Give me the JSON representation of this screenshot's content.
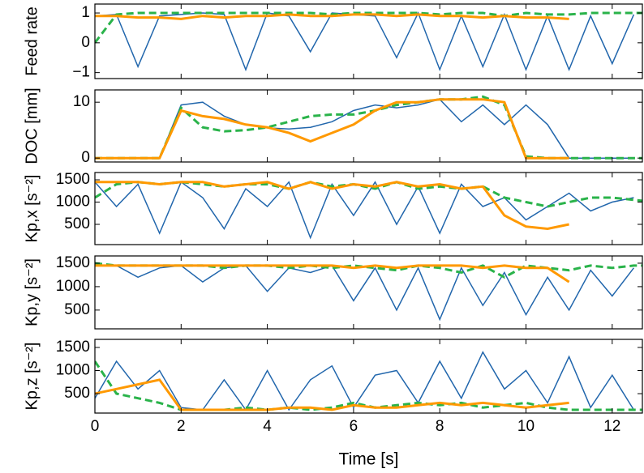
{
  "chart_data": [
    {
      "type": "line",
      "ylabel": "Feed rate",
      "x": [
        0,
        0.5,
        1,
        1.5,
        2,
        2.5,
        3,
        3.5,
        4,
        4.5,
        5,
        5.5,
        6,
        6.5,
        7,
        7.5,
        8,
        8.5,
        9,
        9.5,
        10,
        10.5,
        11,
        11.5,
        12,
        12.5,
        13
      ],
      "xlim": [
        0,
        12.7
      ],
      "xticks": [
        0,
        2,
        4,
        6,
        8,
        10,
        12
      ],
      "ylim": [
        -1.2,
        1.3
      ],
      "yticks": [
        {
          "value": -1,
          "label": "−1"
        },
        0,
        1
      ],
      "series": [
        {
          "color": "#2166ac",
          "dash": false,
          "values": [
            0.9,
            0.95,
            -0.8,
            0.9,
            0.95,
            1,
            0.95,
            -0.9,
            1,
            0.9,
            -0.3,
            1,
            0.95,
            0.9,
            -0.5,
            1,
            -0.9,
            0.9,
            -0.8,
            0.95,
            -0.9,
            0.9,
            -0.9,
            0.9,
            -0.7,
            0.95,
            null
          ]
        },
        {
          "color": "#2ab34a",
          "dash": true,
          "values": [
            0,
            0.95,
            1,
            1,
            1,
            1,
            1,
            1,
            1,
            1,
            1,
            0.95,
            1,
            1,
            1,
            1,
            0.95,
            1,
            1,
            0.9,
            1,
            0.95,
            0.95,
            1,
            1,
            1,
            1
          ]
        },
        {
          "color": "#ff9900",
          "dash": false,
          "values": [
            0.9,
            0.9,
            0.85,
            0.85,
            0.8,
            0.9,
            0.85,
            0.9,
            0.9,
            0.95,
            0.9,
            0.9,
            0.95,
            0.95,
            0.9,
            0.95,
            0.9,
            0.9,
            0.85,
            0.9,
            0.85,
            0.85,
            0.8,
            null,
            null,
            null,
            null
          ]
        }
      ]
    },
    {
      "type": "line",
      "ylabel": "DOC [mm]",
      "x": [
        0,
        0.5,
        1,
        1.5,
        2,
        2.5,
        3,
        3.5,
        4,
        4.5,
        5,
        5.5,
        6,
        6.5,
        7,
        7.5,
        8,
        8.5,
        9,
        9.5,
        10,
        10.5,
        11,
        11.5,
        12,
        12.5,
        13
      ],
      "xlim": [
        0,
        12.7
      ],
      "xticks": [
        0,
        2,
        4,
        6,
        8,
        10,
        12
      ],
      "ylim": [
        -0.7,
        12.2
      ],
      "yticks": [
        0,
        10
      ],
      "series": [
        {
          "color": "#2166ac",
          "dash": false,
          "values": [
            0,
            0,
            0,
            0,
            9.5,
            10,
            7.5,
            6,
            5.4,
            5.2,
            5.5,
            6.5,
            8.5,
            9.5,
            9,
            9.5,
            10.5,
            6.5,
            9.5,
            6,
            9.5,
            6,
            0,
            0,
            0,
            0,
            null
          ]
        },
        {
          "color": "#2ab34a",
          "dash": true,
          "values": [
            0,
            0,
            0,
            0,
            9,
            5.5,
            4.8,
            5,
            5.5,
            6.5,
            7.5,
            7.8,
            7.8,
            8.5,
            9.5,
            10,
            10.5,
            10.5,
            11,
            9.5,
            0.3,
            0,
            0,
            0,
            0,
            0,
            0
          ]
        },
        {
          "color": "#ff9900",
          "dash": false,
          "values": [
            0,
            0,
            0,
            0,
            8.5,
            7.5,
            7,
            6,
            5.5,
            4.5,
            3,
            4.5,
            6,
            8.5,
            10,
            10,
            10.5,
            10.5,
            10.5,
            10,
            0,
            0,
            0,
            null,
            null,
            null,
            null
          ]
        }
      ]
    },
    {
      "type": "line",
      "ylabel": "Kp,x [s⁻²]",
      "x": [
        0,
        0.5,
        1,
        1.5,
        2,
        2.5,
        3,
        3.5,
        4,
        4.5,
        5,
        5.5,
        6,
        6.5,
        7,
        7.5,
        8,
        8.5,
        9,
        9.5,
        10,
        10.5,
        11,
        11.5,
        12,
        12.5,
        13
      ],
      "xlim": [
        0,
        12.7
      ],
      "xticks": [
        0,
        2,
        4,
        6,
        8,
        10,
        12
      ],
      "ylim": [
        45,
        1664
      ],
      "yticks": [
        500,
        1000,
        1500
      ],
      "series": [
        {
          "color": "#2166ac",
          "dash": false,
          "values": [
            1450,
            900,
            1400,
            300,
            1450,
            1100,
            400,
            1300,
            900,
            1450,
            200,
            1400,
            700,
            1450,
            500,
            1350,
            300,
            1400,
            900,
            1100,
            600,
            900,
            1200,
            800,
            1000,
            1100,
            null
          ]
        },
        {
          "color": "#2ab34a",
          "dash": true,
          "values": [
            1100,
            1400,
            1450,
            1400,
            1450,
            1400,
            1350,
            1400,
            1400,
            1300,
            1450,
            1350,
            1400,
            1300,
            1450,
            1300,
            1350,
            1300,
            1350,
            1100,
            1000,
            900,
            1000,
            1100,
            1100,
            1050,
            1000
          ]
        },
        {
          "color": "#ff9900",
          "dash": false,
          "values": [
            1450,
            1450,
            1450,
            1400,
            1450,
            1450,
            1350,
            1400,
            1450,
            1300,
            1450,
            1300,
            1400,
            1350,
            1450,
            1350,
            1400,
            1300,
            1350,
            700,
            450,
            400,
            500,
            null,
            null,
            null,
            null
          ]
        }
      ]
    },
    {
      "type": "line",
      "ylabel": "Kp,y [s⁻²]",
      "x": [
        0,
        0.5,
        1,
        1.5,
        2,
        2.5,
        3,
        3.5,
        4,
        4.5,
        5,
        5.5,
        6,
        6.5,
        7,
        7.5,
        8,
        8.5,
        9,
        9.5,
        10,
        10.5,
        11,
        11.5,
        12,
        12.5,
        13
      ],
      "xlim": [
        0,
        12.7
      ],
      "xticks": [
        0,
        2,
        4,
        6,
        8,
        10,
        12
      ],
      "ylim": [
        100,
        1655
      ],
      "yticks": [
        500,
        1000,
        1500
      ],
      "series": [
        {
          "color": "#2166ac",
          "dash": false,
          "values": [
            1450,
            1450,
            1200,
            1400,
            1450,
            1100,
            1400,
            1450,
            900,
            1400,
            1300,
            1450,
            700,
            1400,
            500,
            1400,
            300,
            1400,
            600,
            1300,
            400,
            1200,
            500,
            1350,
            800,
            1400,
            null
          ]
        },
        {
          "color": "#2ab34a",
          "dash": true,
          "values": [
            1500,
            1450,
            1450,
            1450,
            1450,
            1450,
            1400,
            1450,
            1450,
            1400,
            1450,
            1400,
            1450,
            1400,
            1350,
            1450,
            1400,
            1300,
            1450,
            1200,
            1450,
            1400,
            1350,
            1450,
            1400,
            1450,
            1450
          ]
        },
        {
          "color": "#ff9900",
          "dash": false,
          "values": [
            1450,
            1450,
            1450,
            1450,
            1450,
            1450,
            1450,
            1450,
            1450,
            1450,
            1450,
            1450,
            1400,
            1450,
            1400,
            1450,
            1450,
            1450,
            1400,
            1450,
            1400,
            1400,
            1100,
            null,
            null,
            null,
            null
          ]
        }
      ]
    },
    {
      "type": "line",
      "ylabel": "Kp,z [s⁻²]",
      "xlabel": "Time [s]",
      "x": [
        0,
        0.5,
        1,
        1.5,
        2,
        2.5,
        3,
        3.5,
        4,
        4.5,
        5,
        5.5,
        6,
        6.5,
        7,
        7.5,
        8,
        8.5,
        9,
        9.5,
        10,
        10.5,
        11,
        11.5,
        12,
        12.5,
        13
      ],
      "xlim": [
        0,
        12.7
      ],
      "xticks": [
        0,
        2,
        4,
        6,
        8,
        10,
        12
      ],
      "ylim": [
        80,
        1675
      ],
      "yticks": [
        500,
        1000,
        1500
      ],
      "series": [
        {
          "color": "#2166ac",
          "dash": false,
          "values": [
            400,
            1200,
            600,
            1000,
            200,
            150,
            800,
            150,
            1000,
            150,
            800,
            1100,
            200,
            900,
            1000,
            300,
            1200,
            400,
            1400,
            600,
            1000,
            300,
            1300,
            200,
            900,
            150,
            null
          ]
        },
        {
          "color": "#2ab34a",
          "dash": true,
          "values": [
            1200,
            500,
            400,
            300,
            150,
            150,
            150,
            200,
            150,
            200,
            150,
            200,
            300,
            200,
            250,
            300,
            250,
            300,
            200,
            250,
            300,
            200,
            150,
            150,
            150,
            150,
            150
          ]
        },
        {
          "color": "#ff9900",
          "dash": false,
          "values": [
            500,
            600,
            700,
            800,
            150,
            150,
            150,
            150,
            150,
            200,
            200,
            150,
            250,
            200,
            200,
            250,
            300,
            250,
            300,
            250,
            200,
            250,
            300,
            null,
            null,
            null,
            null
          ]
        }
      ]
    }
  ]
}
